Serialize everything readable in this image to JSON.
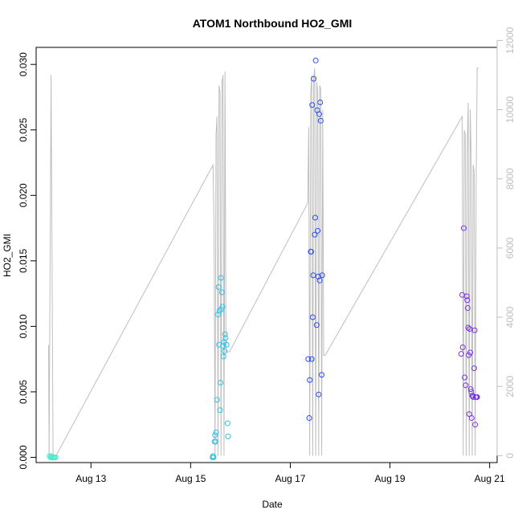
{
  "chart_data": {
    "type": "scatter",
    "title": "ATOM1 Northbound HO2_GMI",
    "xlabel": "Date",
    "ylabel": "HO2_GMI",
    "x_ticks": [
      {
        "day": 13,
        "label": "Aug 13"
      },
      {
        "day": 15,
        "label": "Aug 15"
      },
      {
        "day": 17,
        "label": "Aug 17"
      },
      {
        "day": 19,
        "label": "Aug 19"
      },
      {
        "day": 21,
        "label": "Aug 21"
      }
    ],
    "y_ticks": [
      0.0,
      0.005,
      0.01,
      0.015,
      0.02,
      0.025,
      0.03
    ],
    "y_tick_labels": [
      "0.000",
      "0.005",
      "0.010",
      "0.015",
      "0.020",
      "0.025",
      "0.030"
    ],
    "ylim": [
      -0.0004,
      0.0313
    ],
    "y2_ticks": [
      0,
      2000,
      4000,
      6000,
      8000,
      10000,
      12000
    ],
    "y2_tick_labels": [
      "0",
      "2000",
      "4000",
      "6000",
      "8000",
      "10000",
      "12000"
    ],
    "y2lim": [
      -200,
      11800
    ],
    "xlim_days": [
      11.9,
      21.15
    ],
    "secondary_line_color": "#bebebe",
    "secondary_line": {
      "x_days": [
        12.15,
        12.16,
        12.2,
        12.24,
        12.28,
        12.3,
        15.45,
        15.47,
        15.49,
        15.51,
        15.53,
        15.55,
        15.57,
        15.59,
        15.61,
        15.63,
        15.65,
        15.67,
        15.69,
        15.71,
        15.73,
        15.75,
        15.78,
        17.35,
        17.37,
        17.39,
        17.41,
        17.43,
        17.45,
        17.47,
        17.49,
        17.51,
        17.53,
        17.55,
        17.57,
        17.59,
        17.61,
        17.63,
        17.65,
        17.67,
        17.7,
        20.45,
        20.47,
        20.49,
        20.51,
        20.53,
        20.55,
        20.57,
        20.59,
        20.61,
        20.63,
        20.65,
        20.67,
        20.69,
        20.71,
        20.73,
        20.75,
        20.78
      ],
      "y_values": [
        3200,
        0,
        11000,
        0,
        0,
        0,
        8400,
        6500,
        0,
        9300,
        9800,
        0,
        10700,
        10500,
        0,
        10800,
        11000,
        0,
        11100,
        3000,
        3000,
        3000,
        3000,
        7300,
        9500,
        0,
        10500,
        11000,
        0,
        10900,
        11200,
        0,
        10800,
        10500,
        0,
        10700,
        10600,
        0,
        10000,
        2900,
        2900,
        9800,
        0,
        9400,
        9300,
        0,
        8900,
        10200,
        0,
        10000,
        8600,
        0,
        8400,
        8200,
        0,
        8000,
        11200,
        11200
      ]
    },
    "series": [
      {
        "color": "#4deacc",
        "x_days": [
          12.17,
          12.19,
          12.2,
          12.21,
          12.23,
          12.25,
          12.27,
          12.29
        ],
        "y_values": [
          0.0001,
          0.0,
          0.0001,
          0.0,
          0.0,
          0.0,
          0.0,
          0.0
        ]
      },
      {
        "color": "#2ec0ea",
        "x_days": [
          15.44,
          15.45,
          15.46,
          15.48,
          15.49,
          15.5,
          15.51,
          15.53,
          15.55,
          15.56,
          15.57,
          15.58,
          15.59,
          15.6,
          15.61,
          15.62,
          15.63,
          15.64,
          15.65,
          15.66,
          15.67,
          15.68,
          15.69,
          15.7,
          15.72,
          15.74,
          15.75
        ],
        "y_values": [
          0.0,
          0.0001,
          0.0,
          0.0012,
          0.0017,
          0.0012,
          0.0019,
          0.0044,
          0.0109,
          0.013,
          0.0086,
          0.0112,
          0.0036,
          0.0057,
          0.0137,
          0.0113,
          0.0126,
          0.0115,
          0.0085,
          0.0077,
          0.0088,
          0.0081,
          0.0094,
          0.0091,
          0.0086,
          0.0026,
          0.0016
        ]
      },
      {
        "color": "#2b4ff0",
        "x_days": [
          17.36,
          17.38,
          17.39,
          17.41,
          17.42,
          17.43,
          17.44,
          17.45,
          17.46,
          17.47,
          17.49,
          17.5,
          17.51,
          17.53,
          17.54,
          17.55,
          17.56,
          17.57,
          17.58,
          17.59,
          17.6,
          17.61,
          17.63,
          17.64
        ],
        "y_values": [
          0.0075,
          0.003,
          0.0059,
          0.0157,
          0.0157,
          0.0075,
          0.0269,
          0.0107,
          0.0139,
          0.0289,
          0.017,
          0.0183,
          0.0303,
          0.0101,
          0.0265,
          0.0173,
          0.0138,
          0.0048,
          0.0262,
          0.0135,
          0.0271,
          0.0257,
          0.0063,
          0.0139
        ]
      },
      {
        "color": "#7a35e6",
        "x_days": [
          20.43,
          20.45,
          20.46,
          20.48,
          20.5,
          20.52,
          20.54,
          20.55,
          20.56,
          20.57,
          20.58,
          20.59,
          20.6,
          20.61,
          20.62,
          20.63,
          20.64,
          20.65,
          20.66,
          20.67,
          20.69,
          20.7,
          20.71,
          20.72,
          20.73,
          20.74,
          20.75
        ],
        "y_values": [
          0.0079,
          0.0124,
          0.0084,
          0.0175,
          0.0061,
          0.0055,
          0.0123,
          0.012,
          0.0114,
          0.0099,
          0.0078,
          0.0033,
          0.0098,
          0.008,
          0.0052,
          0.005,
          0.003,
          0.0047,
          0.0047,
          0.0046,
          0.0068,
          0.0097,
          0.0025,
          0.0046,
          0.0046,
          0.0046,
          0.0046
        ]
      }
    ]
  }
}
